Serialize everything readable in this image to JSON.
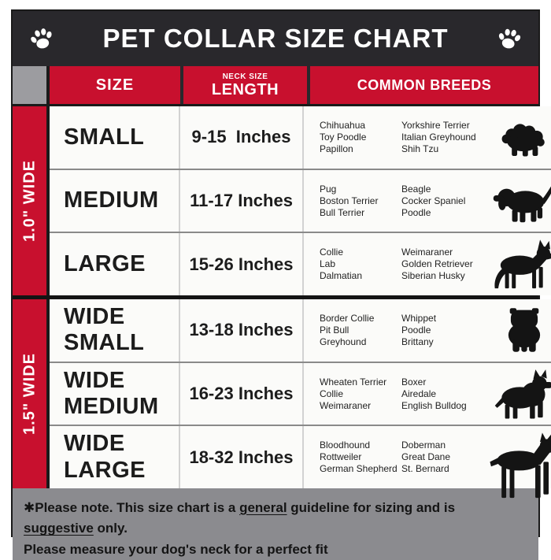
{
  "colors": {
    "red": "#c8102e",
    "header_dark": "#29282c",
    "corner_gray": "#9c9ca0",
    "footer_gray": "#8b8b8f",
    "silhouette_black": "#141414"
  },
  "title_bar": {
    "title": "PET COLLAR SIZE CHART",
    "left_icon": "paw-icon",
    "right_icon": "paw-icon"
  },
  "header": {
    "size_col": "SIZE",
    "neck_col_top": "NECK SIZE",
    "neck_col_main": "LENGTH",
    "breeds_col": "COMMON BREEDS"
  },
  "sections": [
    {
      "band_label": "1.0\" WIDE",
      "rows": [
        {
          "size": "SMALL",
          "neck": "9-15  Inches",
          "breeds_col1": [
            "Chihuahua",
            "Toy Poodle",
            "Papillon"
          ],
          "breeds_col2": [
            "Yorkshire Terrier",
            "Italian Greyhound",
            "Shih Tzu"
          ],
          "dog_icon": "shih-tzu-silhouette"
        },
        {
          "size": "MEDIUM",
          "neck": "11-17 Inches",
          "breeds_col1": [
            "Pug",
            "Boston Terrier",
            "Bull Terrier"
          ],
          "breeds_col2": [
            "Beagle",
            "Cocker Spaniel",
            "Poodle"
          ],
          "dog_icon": "beagle-silhouette"
        },
        {
          "size": "LARGE",
          "neck": "15-26 Inches",
          "breeds_col1": [
            "Collie",
            "Lab",
            "Dalmatian"
          ],
          "breeds_col2": [
            "Weimaraner",
            "Golden Retriever",
            "Siberian Husky"
          ],
          "dog_icon": "german-shepherd-silhouette"
        }
      ]
    },
    {
      "band_label": "1.5\" WIDE",
      "rows": [
        {
          "size": "WIDE\nSMALL",
          "neck": "13-18 Inches",
          "breeds_col1": [
            "Border Collie",
            "Pit Bull",
            "Greyhound"
          ],
          "breeds_col2": [
            "Whippet",
            "Poodle",
            "Brittany"
          ],
          "dog_icon": "bulldog-silhouette"
        },
        {
          "size": "WIDE\nMEDIUM",
          "neck": "16-23 Inches",
          "breeds_col1": [
            "Wheaten Terrier",
            "Collie",
            "Weimaraner"
          ],
          "breeds_col2": [
            "Boxer",
            "Airedale",
            "English Bulldog"
          ],
          "dog_icon": "pit-bull-silhouette"
        },
        {
          "size": "WIDE\nLARGE",
          "neck": "18-32 Inches",
          "breeds_col1": [
            "Bloodhound",
            "Rottweiler",
            "German Shepherd"
          ],
          "breeds_col2": [
            "Doberman",
            "Great Dane",
            "St. Bernard"
          ],
          "dog_icon": "doberman-silhouette"
        }
      ]
    }
  ],
  "footer": {
    "line1_parts": [
      {
        "text": "✱Please note. This size chart is a "
      },
      {
        "text": "general",
        "underline": true
      },
      {
        "text": " guideline for sizing and is "
      },
      {
        "text": "suggestive",
        "underline": true
      },
      {
        "text": " only."
      }
    ],
    "line2": "Please measure your dog's neck for a perfect fit"
  }
}
